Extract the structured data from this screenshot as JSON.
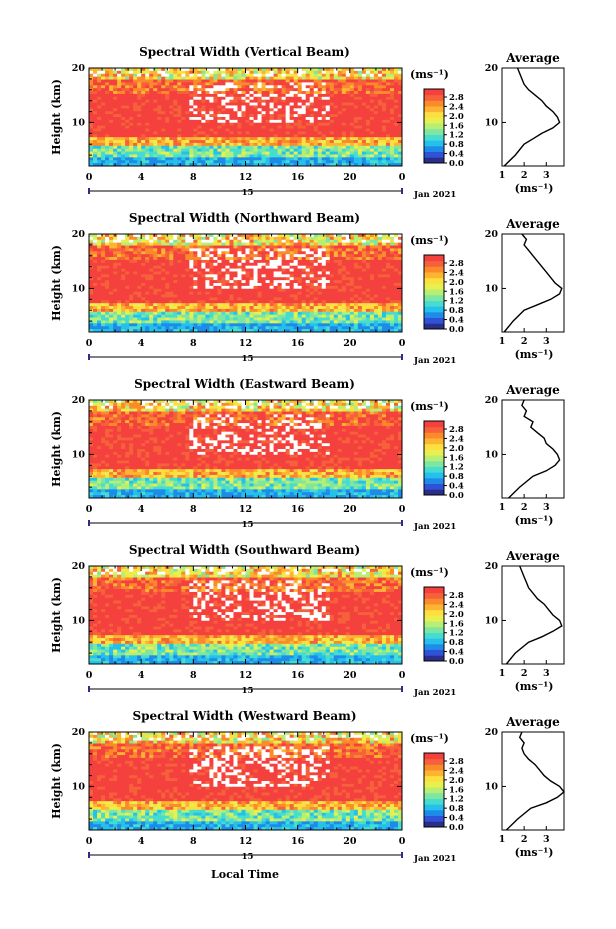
{
  "figure": {
    "xaxis_label": "Local Time",
    "colorbar_unit": "(ms⁻¹)",
    "colorbar_ticks": [
      "2.8",
      "2.4",
      "2.0",
      "1.6",
      "1.2",
      "0.8",
      "0.4",
      "0.0"
    ],
    "colorbar_colors": [
      "#2a2e8a",
      "#2f52d6",
      "#1f8be8",
      "#25c0ec",
      "#47dcd0",
      "#7ee6a0",
      "#b7ee74",
      "#e8f050",
      "#fde040",
      "#fdb432",
      "#fb8a2a",
      "#f6603a",
      "#f4413e"
    ],
    "date_label": "Jan 2021",
    "day_label": "15",
    "profile_title": "Average",
    "profile_unit": "(ms⁻¹)",
    "height_label": "Height (km)",
    "x_ticks": [
      "0",
      "4",
      "8",
      "12",
      "16",
      "20",
      "0"
    ],
    "y_ticks": [
      "20",
      "10"
    ],
    "profile_x_ticks": [
      "1",
      "2",
      "3"
    ]
  },
  "chart_data": [
    {
      "type": "heatmap",
      "title": "Spectral Width (Vertical Beam)",
      "xlabel": "",
      "ylabel": "Height (km)",
      "x_range_hours": [
        0,
        24
      ],
      "y_range_km": [
        2,
        20
      ],
      "colorbar_range": [
        0.0,
        3.0
      ],
      "average_profile": {
        "title": "Average",
        "xlabel": "(ms⁻¹)",
        "xlim": [
          1,
          3.8
        ],
        "points": [
          [
            1.1,
            2
          ],
          [
            1.6,
            4
          ],
          [
            2.0,
            6
          ],
          [
            2.4,
            7
          ],
          [
            2.8,
            8
          ],
          [
            3.3,
            9
          ],
          [
            3.6,
            10
          ],
          [
            3.5,
            11
          ],
          [
            3.3,
            12
          ],
          [
            3.0,
            13
          ],
          [
            2.8,
            14
          ],
          [
            2.5,
            15
          ],
          [
            2.2,
            16
          ],
          [
            2.0,
            17
          ],
          [
            1.9,
            18
          ],
          [
            1.8,
            19
          ],
          [
            1.7,
            20
          ]
        ]
      }
    },
    {
      "type": "heatmap",
      "title": "Spectral Width (Northward Beam)",
      "xlabel": "",
      "ylabel": "Height (km)",
      "x_range_hours": [
        0,
        24
      ],
      "y_range_km": [
        2,
        20
      ],
      "colorbar_range": [
        0.0,
        3.0
      ],
      "average_profile": {
        "title": "Average",
        "xlabel": "(ms⁻¹)",
        "xlim": [
          1,
          3.8
        ],
        "points": [
          [
            1.1,
            2
          ],
          [
            1.5,
            4
          ],
          [
            2.0,
            6
          ],
          [
            2.6,
            7
          ],
          [
            3.2,
            8
          ],
          [
            3.6,
            9
          ],
          [
            3.7,
            10
          ],
          [
            3.4,
            11
          ],
          [
            3.2,
            12
          ],
          [
            3.0,
            13
          ],
          [
            2.8,
            14
          ],
          [
            2.6,
            15
          ],
          [
            2.4,
            16
          ],
          [
            2.2,
            17
          ],
          [
            2.0,
            18
          ],
          [
            2.1,
            19
          ],
          [
            1.9,
            20
          ]
        ]
      }
    },
    {
      "type": "heatmap",
      "title": "Spectral Width (Eastward Beam)",
      "xlabel": "",
      "ylabel": "Height (km)",
      "x_range_hours": [
        0,
        24
      ],
      "y_range_km": [
        2,
        20
      ],
      "colorbar_range": [
        0.0,
        3.0
      ],
      "average_profile": {
        "title": "Average",
        "xlabel": "(ms⁻¹)",
        "xlim": [
          1,
          3.8
        ],
        "points": [
          [
            1.3,
            2
          ],
          [
            1.8,
            4
          ],
          [
            2.4,
            6
          ],
          [
            3.0,
            7
          ],
          [
            3.4,
            8
          ],
          [
            3.6,
            9
          ],
          [
            3.5,
            10
          ],
          [
            3.3,
            11
          ],
          [
            3.0,
            12
          ],
          [
            2.9,
            13
          ],
          [
            2.6,
            14
          ],
          [
            2.3,
            15
          ],
          [
            2.4,
            16
          ],
          [
            2.0,
            17
          ],
          [
            2.1,
            18
          ],
          [
            1.9,
            19
          ],
          [
            2.0,
            20
          ]
        ]
      }
    },
    {
      "type": "heatmap",
      "title": "Spectral Width (Southward Beam)",
      "xlabel": "",
      "ylabel": "Height (km)",
      "x_range_hours": [
        0,
        24
      ],
      "y_range_km": [
        2,
        20
      ],
      "colorbar_range": [
        0.0,
        3.0
      ],
      "average_profile": {
        "title": "Average",
        "xlabel": "(ms⁻¹)",
        "xlim": [
          1,
          3.8
        ],
        "points": [
          [
            1.2,
            2
          ],
          [
            1.6,
            4
          ],
          [
            2.2,
            6
          ],
          [
            2.8,
            7
          ],
          [
            3.3,
            8
          ],
          [
            3.7,
            9
          ],
          [
            3.6,
            10
          ],
          [
            3.3,
            11
          ],
          [
            3.1,
            12
          ],
          [
            2.9,
            13
          ],
          [
            2.6,
            14
          ],
          [
            2.4,
            15
          ],
          [
            2.2,
            16
          ],
          [
            2.1,
            17
          ],
          [
            2.0,
            18
          ],
          [
            1.9,
            19
          ],
          [
            1.8,
            20
          ]
        ]
      }
    },
    {
      "type": "heatmap",
      "title": "Spectral Width (Westward Beam)",
      "xlabel": "Local Time",
      "ylabel": "Height (km)",
      "x_range_hours": [
        0,
        24
      ],
      "y_range_km": [
        2,
        20
      ],
      "colorbar_range": [
        0.0,
        3.0
      ],
      "average_profile": {
        "title": "Average",
        "xlabel": "(ms⁻¹)",
        "xlim": [
          1,
          3.8
        ],
        "points": [
          [
            1.2,
            2
          ],
          [
            1.7,
            4
          ],
          [
            2.3,
            6
          ],
          [
            3.0,
            7
          ],
          [
            3.5,
            8
          ],
          [
            3.8,
            9
          ],
          [
            3.6,
            10
          ],
          [
            3.2,
            11
          ],
          [
            2.9,
            12
          ],
          [
            2.7,
            13
          ],
          [
            2.5,
            14
          ],
          [
            2.2,
            15
          ],
          [
            2.0,
            16
          ],
          [
            1.9,
            17
          ],
          [
            2.0,
            18
          ],
          [
            1.8,
            19
          ],
          [
            1.9,
            20
          ]
        ]
      }
    }
  ]
}
